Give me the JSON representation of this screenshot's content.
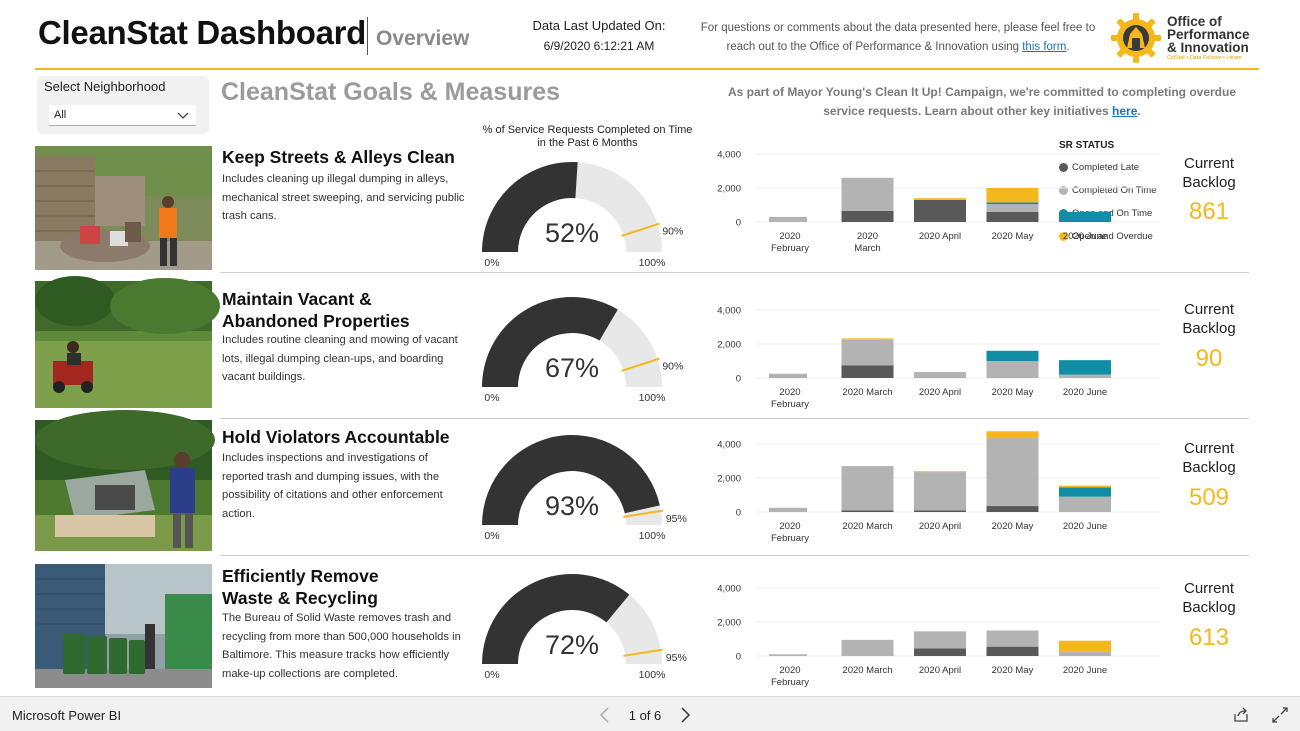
{
  "header": {
    "title": "CleanStat Dashboard",
    "subtitle": "Overview",
    "updated_label": "Data Last Updated On:",
    "updated_value": "6/9/2020 6:12:21 AM",
    "contact_text": "For questions or comments about the data presented here, please feel free to reach out to the Office of Performance & Innovation using ",
    "contact_link": "this form",
    "contact_end": ".",
    "logo_line1": "Office of",
    "logo_line2": "Performance",
    "logo_line3": "& Innovation",
    "logo_sub": "CitiStat • Data Fellows • i-team"
  },
  "selector": {
    "label": "Select Neighborhood",
    "value": "All"
  },
  "goals_heading": "CleanStat Goals & Measures",
  "campaign": {
    "text": "As part of Mayor Young's Clean It Up! Campaign, we're committed to completing overdue service requests. Learn about other key initiatives ",
    "link": "here",
    "end": "."
  },
  "gauge_title": "% of Service Requests Completed on Time in the Past 6 Months",
  "legend": {
    "title": "SR STATUS",
    "items": [
      {
        "label": "Completed Late",
        "color": "#595959"
      },
      {
        "label": "Completed On Time",
        "color": "#b3b3b3"
      },
      {
        "label": "Open and On Time",
        "color": "#118ea6"
      },
      {
        "label": "Open and Overdue",
        "color": "#f4b81d"
      }
    ]
  },
  "backlog_label": "Current Backlog",
  "rows": [
    {
      "title_lines": [
        "Keep Streets & Alleys Clean"
      ],
      "description": "Includes cleaning up illegal dumping in alleys, mechanical street sweeping, and servicing public trash cans.",
      "gauge": {
        "value": 52,
        "value_label": "52%",
        "target": 90,
        "target_label": "90%",
        "min_label": "0%",
        "max_label": "100%"
      },
      "backlog": "861",
      "chart": {
        "categories": [
          "2020 February",
          "2020 March",
          "2020 April",
          "2020 May",
          "2020 June"
        ],
        "category_lines": [
          [
            "2020",
            "February"
          ],
          [
            "2020",
            "March"
          ],
          [
            "2020 April"
          ],
          [
            "2020 May"
          ],
          [
            "2020 June"
          ]
        ],
        "yticks": [
          "0",
          "2,000",
          "4,000"
        ],
        "ymax": 4000,
        "series": [
          {
            "name": "Completed Late",
            "values": [
              0,
              650,
              1300,
              600,
              0
            ]
          },
          {
            "name": "Completed On Time",
            "values": [
              300,
              1950,
              50,
              450,
              0
            ]
          },
          {
            "name": "Open and On Time",
            "values": [
              0,
              0,
              0,
              100,
              600
            ]
          },
          {
            "name": "Open and Overdue",
            "values": [
              0,
              0,
              50,
              850,
              0
            ]
          }
        ]
      }
    },
    {
      "title_lines": [
        "Maintain Vacant &",
        "Abandoned Properties"
      ],
      "description": "Includes routine cleaning and mowing of vacant lots, illegal dumping clean-ups, and boarding vacant buildings.",
      "gauge": {
        "value": 67,
        "value_label": "67%",
        "target": 90,
        "target_label": "90%",
        "min_label": "0%",
        "max_label": "100%"
      },
      "backlog": "90",
      "chart": {
        "categories": [
          "2020 February",
          "2020 March",
          "2020 April",
          "2020 May",
          "2020 June"
        ],
        "category_lines": [
          [
            "2020",
            "February"
          ],
          [
            "2020 March"
          ],
          [
            "2020 April"
          ],
          [
            "2020 May"
          ],
          [
            "2020 June"
          ]
        ],
        "yticks": [
          "0",
          "2,000",
          "4,000"
        ],
        "ymax": 4000,
        "series": [
          {
            "name": "Completed Late",
            "values": [
              0,
              750,
              0,
              0,
              0
            ]
          },
          {
            "name": "Completed On Time",
            "values": [
              250,
              1500,
              350,
              1000,
              200
            ]
          },
          {
            "name": "Open and On Time",
            "values": [
              0,
              0,
              0,
              600,
              850
            ]
          },
          {
            "name": "Open and Overdue",
            "values": [
              0,
              80,
              0,
              0,
              0
            ]
          }
        ]
      }
    },
    {
      "title_lines": [
        "Hold Violators Accountable"
      ],
      "description": "Includes inspections and investigations of reported trash and dumping issues, with the possibility of citations and other enforcement action.",
      "gauge": {
        "value": 93,
        "value_label": "93%",
        "target": 95,
        "target_label": "95%",
        "min_label": "0%",
        "max_label": "100%"
      },
      "backlog": "509",
      "chart": {
        "categories": [
          "2020 February",
          "2020 March",
          "2020 April",
          "2020 May",
          "2020 June"
        ],
        "category_lines": [
          [
            "2020",
            "February"
          ],
          [
            "2020 March"
          ],
          [
            "2020 April"
          ],
          [
            "2020 May"
          ],
          [
            "2020 June"
          ]
        ],
        "yticks": [
          "0",
          "2,000",
          "4,000"
        ],
        "ymax": 4000,
        "series": [
          {
            "name": "Completed Late",
            "values": [
              0,
              100,
              100,
              350,
              0
            ]
          },
          {
            "name": "Completed On Time",
            "values": [
              250,
              2600,
              2250,
              4000,
              900
            ]
          },
          {
            "name": "Open and On Time",
            "values": [
              0,
              0,
              0,
              0,
              550
            ]
          },
          {
            "name": "Open and Overdue",
            "values": [
              0,
              0,
              50,
              400,
              100
            ]
          }
        ]
      }
    },
    {
      "title_lines": [
        "Efficiently Remove",
        "Waste & Recycling"
      ],
      "description": "The Bureau of Solid Waste removes trash and recycling from more than 500,000 households in Baltimore. This measure tracks how efficiently make-up collections are completed.",
      "gauge": {
        "value": 72,
        "value_label": "72%",
        "target": 95,
        "target_label": "95%",
        "min_label": "0%",
        "max_label": "100%"
      },
      "backlog": "613",
      "chart": {
        "categories": [
          "2020 February",
          "2020 March",
          "2020 April",
          "2020 May",
          "2020 June"
        ],
        "category_lines": [
          [
            "2020",
            "February"
          ],
          [
            "2020 March"
          ],
          [
            "2020 April"
          ],
          [
            "2020 May"
          ],
          [
            "2020 June"
          ]
        ],
        "yticks": [
          "0",
          "2,000",
          "4,000"
        ],
        "ymax": 4000,
        "series": [
          {
            "name": "Completed Late",
            "values": [
              0,
              0,
              450,
              550,
              0
            ]
          },
          {
            "name": "Completed On Time",
            "values": [
              100,
              950,
              1000,
              950,
              250
            ]
          },
          {
            "name": "Open and On Time",
            "values": [
              0,
              0,
              0,
              0,
              0
            ]
          },
          {
            "name": "Open and Overdue",
            "values": [
              0,
              0,
              0,
              0,
              650
            ]
          }
        ]
      }
    }
  ],
  "footer": {
    "brand": "Microsoft Power BI",
    "page_indicator": "1 of 6"
  }
}
